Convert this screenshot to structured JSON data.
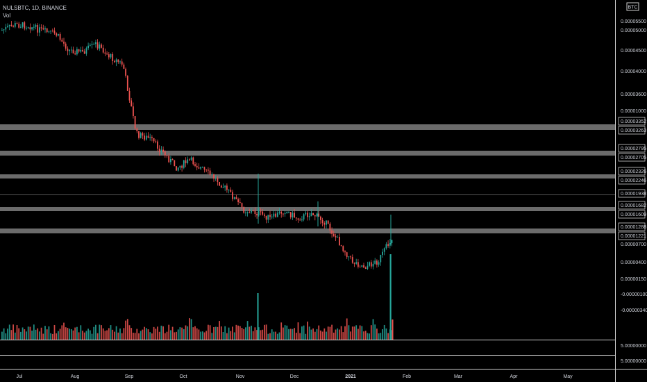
{
  "header": {
    "symbol": "NULSBTC, 1D, BINANCE",
    "volume_label": "Vol"
  },
  "price_axis": {
    "currency": "BTC",
    "ticks": [
      "0.00005500",
      "0.00005000",
      "0.00004500",
      "0.00004000",
      "0.00003600",
      "0.00001000",
      "0.00000700",
      "0.00000400",
      "0.00000150",
      "-0.00000100",
      "-0.00000340"
    ]
  },
  "level_labels": [
    "0.00003352",
    "0.00003263",
    "0.00002795",
    "0.00002705",
    "0.00002326",
    "0.00002246",
    "0.00001938",
    "0.00001682",
    "0.00001609",
    "0.00001288",
    "0.00001221"
  ],
  "volume_axis": {
    "ticks": [
      "5.00000000",
      "5.00000000"
    ]
  },
  "time_axis": {
    "labels": [
      "Jul",
      "Aug",
      "Sep",
      "Oct",
      "Nov",
      "Dec",
      "2021",
      "Feb",
      "Mar",
      "Apr",
      "May"
    ]
  },
  "colors": {
    "up": "#26a69a",
    "down": "#ef5350",
    "band": "#6b6b6b",
    "axis_text": "#d1d4dc"
  },
  "chart_data": {
    "type": "candlestick",
    "symbol": "NULSBTC",
    "interval": "1D",
    "exchange": "BINANCE",
    "x_range": [
      "Jul",
      "May"
    ],
    "y_unit": "BTC",
    "ylim": [
      4.5e-06,
      5.75e-05
    ],
    "horizontal_zones": [
      {
        "upper": 3.352e-05,
        "lower": 3.263e-05
      },
      {
        "upper": 2.795e-05,
        "lower": 2.705e-05
      },
      {
        "upper": 2.326e-05,
        "lower": 2.246e-05
      },
      {
        "upper": 1.938e-05,
        "lower": 1.938e-05
      },
      {
        "upper": 1.682e-05,
        "lower": 1.609e-05
      },
      {
        "upper": 1.288e-05,
        "lower": 1.221e-05
      }
    ],
    "price_path": [
      [
        "Jul 1",
        5.1e-05
      ],
      [
        "Jul 8",
        5.4e-05
      ],
      [
        "Jul 15",
        5.35e-05
      ],
      [
        "Jul 22",
        5.05e-05
      ],
      [
        "Jul 29",
        4.95e-05
      ],
      [
        "Aug 5",
        4.55e-05
      ],
      [
        "Aug 12",
        4.5e-05
      ],
      [
        "Aug 19",
        4.7e-05
      ],
      [
        "Aug 26",
        4.4e-05
      ],
      [
        "Sep 2",
        4.2e-05
      ],
      [
        "Sep 9",
        3.2e-05
      ],
      [
        "Sep 16",
        3.1e-05
      ],
      [
        "Sep 23",
        2.8e-05
      ],
      [
        "Sep 30",
        2.5e-05
      ],
      [
        "Oct 7",
        2.65e-05
      ],
      [
        "Oct 14",
        2.45e-05
      ],
      [
        "Oct 21",
        2.25e-05
      ],
      [
        "Oct 28",
        1.95e-05
      ],
      [
        "Nov 4",
        1.65e-05
      ],
      [
        "Nov 11",
        1.6e-05
      ],
      [
        "Nov 18",
        1.5e-05
      ],
      [
        "Nov 25",
        1.65e-05
      ],
      [
        "Dec 2",
        1.5e-05
      ],
      [
        "Dec 9",
        1.6e-05
      ],
      [
        "Dec 16",
        1.45e-05
      ],
      [
        "Dec 23",
        1.1e-05
      ],
      [
        "Dec 30",
        7.5e-06
      ],
      [
        "Jan 6",
        6.5e-06
      ],
      [
        "Jan 13",
        7.5e-06
      ],
      [
        "Jan 20",
        1.15e-05
      ]
    ]
  }
}
